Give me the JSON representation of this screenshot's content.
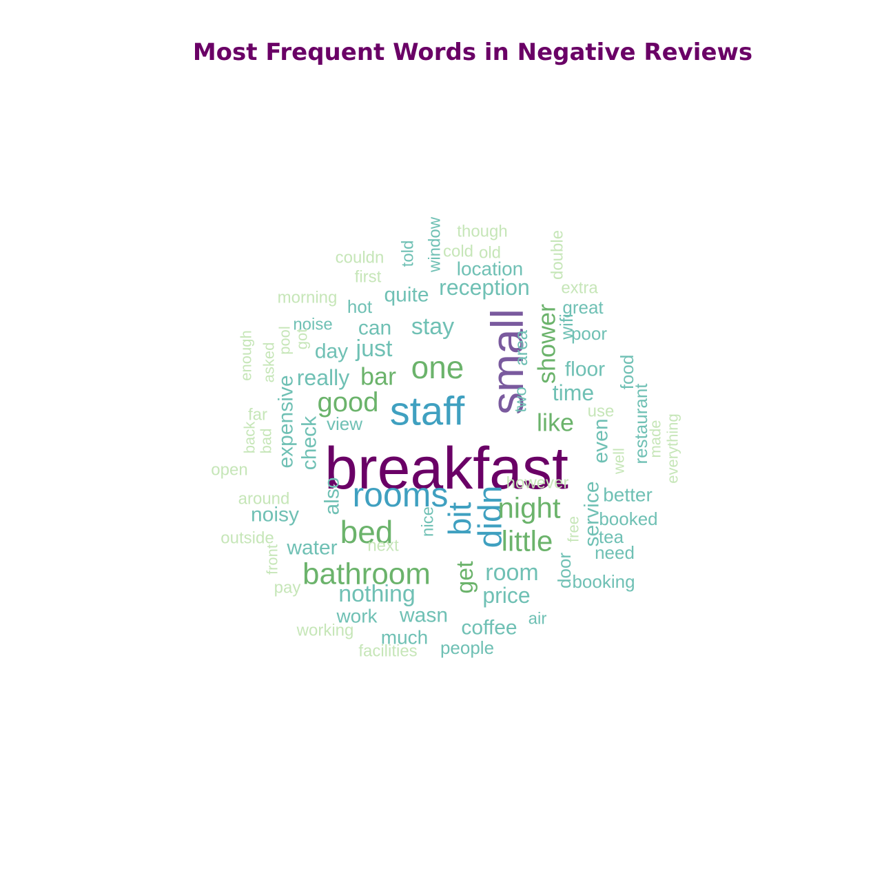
{
  "chart_data": {
    "type": "wordcloud",
    "title": "Most Frequent Words in Negative Reviews",
    "colors": {
      "title": "#6a0066",
      "level1": "#6a0066",
      "level2": "#7a5a9e",
      "level3": "#3fa0c0",
      "level4": "#6bb36b",
      "level5": "#6fc0b4",
      "level6": "#c6e6b8"
    },
    "words": [
      {
        "text": "breakfast",
        "level": 1
      },
      {
        "text": "small",
        "level": 2
      },
      {
        "text": "staff",
        "level": 3
      },
      {
        "text": "rooms",
        "level": 3
      },
      {
        "text": "bit",
        "level": 3
      },
      {
        "text": "didn",
        "level": 3
      },
      {
        "text": "one",
        "level": 4
      },
      {
        "text": "bed",
        "level": 4
      },
      {
        "text": "bathroom",
        "level": 4
      },
      {
        "text": "good",
        "level": 4
      },
      {
        "text": "night",
        "level": 4
      },
      {
        "text": "little",
        "level": 4
      },
      {
        "text": "shower",
        "level": 4
      },
      {
        "text": "bar",
        "level": 4
      },
      {
        "text": "like",
        "level": 4
      },
      {
        "text": "get",
        "level": 4
      },
      {
        "text": "stay",
        "level": 5
      },
      {
        "text": "just",
        "level": 5
      },
      {
        "text": "can",
        "level": 5
      },
      {
        "text": "day",
        "level": 5
      },
      {
        "text": "really",
        "level": 5
      },
      {
        "text": "time",
        "level": 5
      },
      {
        "text": "floor",
        "level": 5
      },
      {
        "text": "room",
        "level": 5
      },
      {
        "text": "price",
        "level": 5
      },
      {
        "text": "nothing",
        "level": 5
      },
      {
        "text": "water",
        "level": 5
      },
      {
        "text": "wasn",
        "level": 5
      },
      {
        "text": "reception",
        "level": 5
      },
      {
        "text": "quite",
        "level": 5
      },
      {
        "text": "location",
        "level": 5
      },
      {
        "text": "hot",
        "level": 5
      },
      {
        "text": "great",
        "level": 5
      },
      {
        "text": "poor",
        "level": 5
      },
      {
        "text": "wifi",
        "level": 5
      },
      {
        "text": "area",
        "level": 5
      },
      {
        "text": "two",
        "level": 5
      },
      {
        "text": "food",
        "level": 5
      },
      {
        "text": "restaurant",
        "level": 5
      },
      {
        "text": "even",
        "level": 5
      },
      {
        "text": "better",
        "level": 5
      },
      {
        "text": "booked",
        "level": 5
      },
      {
        "text": "tea",
        "level": 5
      },
      {
        "text": "need",
        "level": 5
      },
      {
        "text": "booking",
        "level": 5
      },
      {
        "text": "service",
        "level": 5
      },
      {
        "text": "door",
        "level": 5
      },
      {
        "text": "coffee",
        "level": 5
      },
      {
        "text": "air",
        "level": 5
      },
      {
        "text": "people",
        "level": 5
      },
      {
        "text": "much",
        "level": 5
      },
      {
        "text": "work",
        "level": 5
      },
      {
        "text": "nice",
        "level": 5
      },
      {
        "text": "also",
        "level": 5
      },
      {
        "text": "check",
        "level": 5
      },
      {
        "text": "expensive",
        "level": 5
      },
      {
        "text": "noisy",
        "level": 5
      },
      {
        "text": "view",
        "level": 5
      },
      {
        "text": "noise",
        "level": 5
      },
      {
        "text": "told",
        "level": 5
      },
      {
        "text": "window",
        "level": 5
      },
      {
        "text": "though",
        "level": 6
      },
      {
        "text": "cold",
        "level": 6
      },
      {
        "text": "old",
        "level": 6
      },
      {
        "text": "couldn",
        "level": 6
      },
      {
        "text": "first",
        "level": 6
      },
      {
        "text": "double",
        "level": 6
      },
      {
        "text": "extra",
        "level": 6
      },
      {
        "text": "morning",
        "level": 6
      },
      {
        "text": "enough",
        "level": 6
      },
      {
        "text": "asked",
        "level": 6
      },
      {
        "text": "pool",
        "level": 6
      },
      {
        "text": "got",
        "level": 6
      },
      {
        "text": "far",
        "level": 6
      },
      {
        "text": "back",
        "level": 6
      },
      {
        "text": "bad",
        "level": 6
      },
      {
        "text": "open",
        "level": 6
      },
      {
        "text": "around",
        "level": 6
      },
      {
        "text": "outside",
        "level": 6
      },
      {
        "text": "front",
        "level": 6
      },
      {
        "text": "pay",
        "level": 6
      },
      {
        "text": "next",
        "level": 6
      },
      {
        "text": "working",
        "level": 6
      },
      {
        "text": "facilities",
        "level": 6
      },
      {
        "text": "use",
        "level": 6
      },
      {
        "text": "made",
        "level": 6
      },
      {
        "text": "everything",
        "level": 6
      },
      {
        "text": "well",
        "level": 6
      },
      {
        "text": "however",
        "level": 6
      },
      {
        "text": "free",
        "level": 6
      }
    ]
  }
}
